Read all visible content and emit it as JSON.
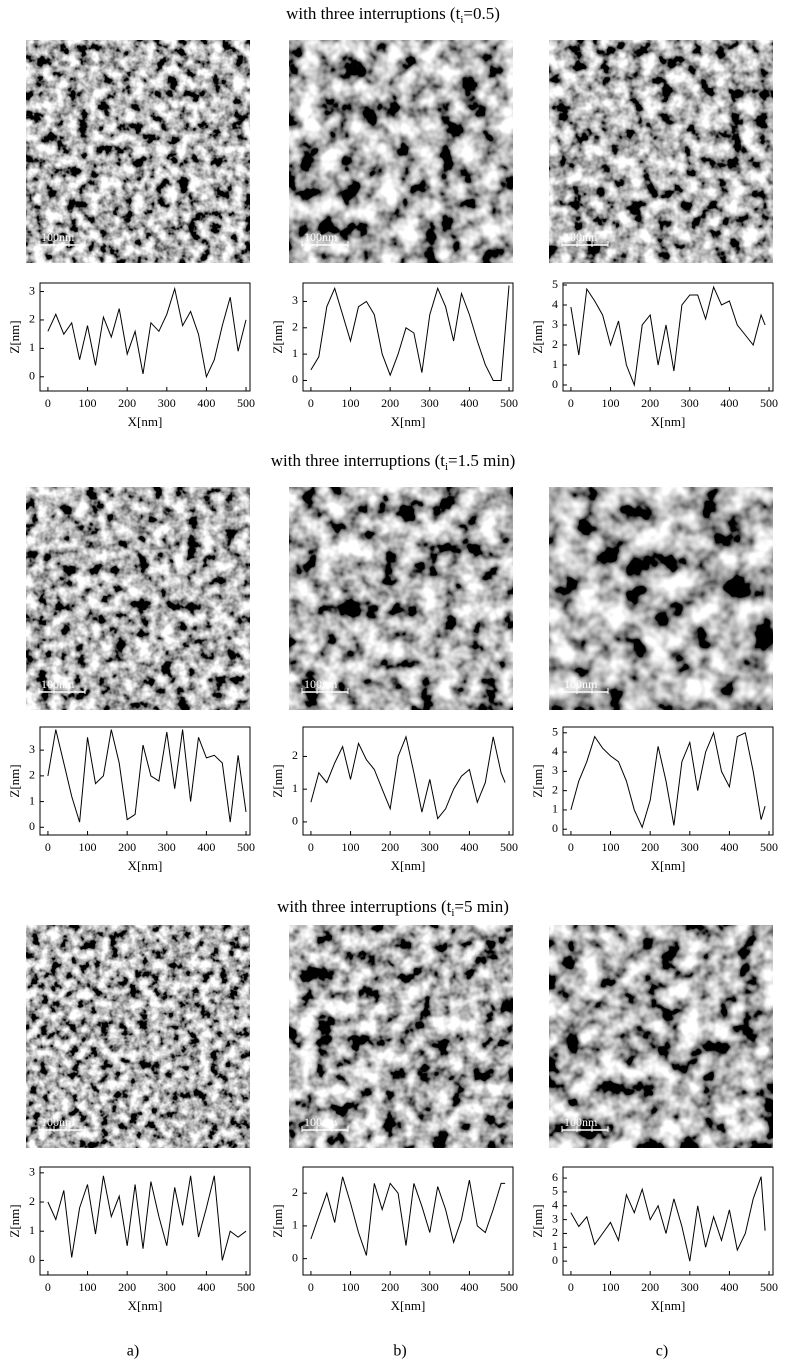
{
  "rows": [
    {
      "title": {
        "prefix": "with three interruptions (t",
        "sub": "i",
        "suffix": "=0.5)"
      }
    },
    {
      "title": {
        "prefix": "with three interruptions (t",
        "sub": "i",
        "suffix": "=1.5 min)"
      }
    },
    {
      "title": {
        "prefix": "with three interruptions (t",
        "sub": "i",
        "suffix": "=5 min)"
      }
    }
  ],
  "scale_bars": [
    "100nm",
    "100nm",
    "100nm",
    "100nm",
    "100nm",
    "100nm",
    "100nm",
    "100nm",
    "100nm"
  ],
  "panel_labels": [
    "a)",
    "b)",
    "c)"
  ],
  "chart_data": [
    {
      "type": "line",
      "xlabel": "X[nm]",
      "ylabel": "Z[nm]",
      "color": "#000000",
      "xlim": [
        -20,
        510
      ],
      "ylim": [
        -0.5,
        3.3
      ],
      "xticks": [
        0,
        100,
        200,
        300,
        400,
        500
      ],
      "yticks": [
        0,
        1,
        2,
        3
      ],
      "x": [
        0,
        20,
        40,
        60,
        80,
        100,
        120,
        140,
        160,
        180,
        200,
        220,
        240,
        260,
        280,
        300,
        320,
        340,
        360,
        380,
        400,
        420,
        440,
        460,
        480,
        500
      ],
      "values": [
        1.6,
        2.2,
        1.5,
        1.9,
        0.6,
        1.8,
        0.4,
        2.1,
        1.4,
        2.4,
        0.8,
        1.6,
        0.1,
        1.9,
        1.6,
        2.2,
        3.1,
        1.8,
        2.3,
        1.5,
        0.0,
        0.6,
        1.8,
        2.8,
        0.9,
        2.0
      ]
    },
    {
      "type": "line",
      "xlabel": "X[nm]",
      "ylabel": "Z[nm]",
      "color": "#000000",
      "xlim": [
        -20,
        510
      ],
      "ylim": [
        -0.4,
        3.7
      ],
      "xticks": [
        0,
        100,
        200,
        300,
        400,
        500
      ],
      "yticks": [
        0,
        1,
        2,
        3
      ],
      "x": [
        0,
        20,
        40,
        60,
        80,
        100,
        120,
        140,
        160,
        180,
        200,
        220,
        240,
        260,
        280,
        300,
        320,
        340,
        360,
        380,
        400,
        420,
        440,
        460,
        480,
        500
      ],
      "values": [
        0.4,
        0.9,
        2.8,
        3.5,
        2.5,
        1.5,
        2.8,
        3.0,
        2.5,
        1.0,
        0.2,
        1.0,
        2.0,
        1.8,
        0.3,
        2.5,
        3.5,
        2.8,
        1.5,
        3.3,
        2.5,
        1.5,
        0.6,
        0.0,
        0.0,
        3.6
      ]
    },
    {
      "type": "line",
      "xlabel": "X[nm]",
      "ylabel": "Z[nm]",
      "color": "#000000",
      "xlim": [
        -20,
        510
      ],
      "ylim": [
        -0.3,
        5.1
      ],
      "xticks": [
        0,
        100,
        200,
        300,
        400,
        500
      ],
      "yticks": [
        0,
        1,
        2,
        3,
        4,
        5
      ],
      "x": [
        0,
        20,
        40,
        60,
        80,
        100,
        120,
        140,
        160,
        180,
        200,
        220,
        240,
        260,
        280,
        300,
        320,
        340,
        360,
        380,
        400,
        420,
        440,
        460,
        480,
        490
      ],
      "values": [
        3.9,
        1.5,
        4.8,
        4.2,
        3.5,
        2.0,
        3.2,
        1.0,
        0.0,
        3.0,
        3.5,
        1.0,
        3.0,
        0.7,
        4.0,
        4.5,
        4.5,
        3.3,
        4.9,
        4.0,
        4.2,
        3.0,
        2.5,
        2.0,
        3.5,
        3.0
      ]
    },
    {
      "type": "line",
      "xlabel": "X[nm]",
      "ylabel": "Z[nm]",
      "color": "#000000",
      "xlim": [
        -20,
        510
      ],
      "ylim": [
        -0.3,
        3.9
      ],
      "xticks": [
        0,
        100,
        200,
        300,
        400,
        500
      ],
      "yticks": [
        0,
        1,
        2,
        3
      ],
      "x": [
        0,
        20,
        40,
        60,
        80,
        100,
        120,
        140,
        160,
        180,
        200,
        220,
        240,
        260,
        280,
        300,
        320,
        340,
        360,
        380,
        400,
        420,
        440,
        460,
        480,
        500
      ],
      "values": [
        2.0,
        3.8,
        2.5,
        1.2,
        0.2,
        3.5,
        1.7,
        2.0,
        3.8,
        2.5,
        0.3,
        0.5,
        3.2,
        2.0,
        1.8,
        3.7,
        1.5,
        3.8,
        1.0,
        3.5,
        2.7,
        2.8,
        2.5,
        0.2,
        2.8,
        0.6
      ]
    },
    {
      "type": "line",
      "xlabel": "X[nm]",
      "ylabel": "Z[nm]",
      "color": "#000000",
      "xlim": [
        -20,
        510
      ],
      "ylim": [
        -0.4,
        2.9
      ],
      "xticks": [
        0,
        100,
        200,
        300,
        400,
        500
      ],
      "yticks": [
        0,
        1,
        2
      ],
      "x": [
        0,
        20,
        40,
        60,
        80,
        100,
        120,
        140,
        160,
        180,
        200,
        220,
        240,
        260,
        280,
        300,
        320,
        340,
        360,
        380,
        400,
        420,
        440,
        460,
        480,
        490
      ],
      "values": [
        0.6,
        1.5,
        1.2,
        1.8,
        2.3,
        1.3,
        2.4,
        1.9,
        1.6,
        1.0,
        0.4,
        2.0,
        2.6,
        1.5,
        0.3,
        1.3,
        0.1,
        0.4,
        1.0,
        1.4,
        1.6,
        0.6,
        1.2,
        2.6,
        1.5,
        1.2
      ]
    },
    {
      "type": "line",
      "xlabel": "X[nm]",
      "ylabel": "Z[nm]",
      "color": "#000000",
      "xlim": [
        -20,
        510
      ],
      "ylim": [
        -0.3,
        5.3
      ],
      "xticks": [
        0,
        100,
        200,
        300,
        400,
        500
      ],
      "yticks": [
        0,
        1,
        2,
        3,
        4,
        5
      ],
      "x": [
        0,
        20,
        40,
        60,
        80,
        100,
        120,
        140,
        160,
        180,
        200,
        220,
        240,
        260,
        280,
        300,
        320,
        340,
        360,
        380,
        400,
        420,
        440,
        460,
        480,
        490
      ],
      "values": [
        1.0,
        2.5,
        3.5,
        4.8,
        4.2,
        3.8,
        3.5,
        2.5,
        1.0,
        0.1,
        1.5,
        4.3,
        2.5,
        0.2,
        3.5,
        4.5,
        2.0,
        4.0,
        5.0,
        3.0,
        2.2,
        4.8,
        5.0,
        3.0,
        0.5,
        1.2
      ]
    },
    {
      "type": "line",
      "xlabel": "X[nm]",
      "ylabel": "Z[nm]",
      "color": "#000000",
      "xlim": [
        -20,
        510
      ],
      "ylim": [
        -0.5,
        3.2
      ],
      "xticks": [
        0,
        100,
        200,
        300,
        400,
        500
      ],
      "yticks": [
        0,
        1,
        2,
        3
      ],
      "x": [
        0,
        20,
        40,
        60,
        80,
        100,
        120,
        140,
        160,
        180,
        200,
        220,
        240,
        260,
        280,
        300,
        320,
        340,
        360,
        380,
        400,
        420,
        440,
        460,
        480,
        500
      ],
      "values": [
        2.0,
        1.4,
        2.4,
        0.1,
        1.8,
        2.6,
        0.9,
        2.9,
        1.5,
        2.2,
        0.5,
        2.6,
        0.4,
        2.7,
        1.5,
        0.5,
        2.5,
        1.2,
        2.9,
        0.8,
        1.8,
        2.9,
        0.0,
        1.0,
        0.8,
        1.0
      ]
    },
    {
      "type": "line",
      "xlabel": "X[nm]",
      "ylabel": "Z[nm]",
      "color": "#000000",
      "xlim": [
        -20,
        510
      ],
      "ylim": [
        -0.5,
        2.8
      ],
      "xticks": [
        0,
        100,
        200,
        300,
        400,
        500
      ],
      "yticks": [
        0,
        1,
        2
      ],
      "x": [
        0,
        20,
        40,
        60,
        80,
        100,
        120,
        140,
        160,
        180,
        200,
        220,
        240,
        260,
        280,
        300,
        320,
        340,
        360,
        380,
        400,
        420,
        440,
        460,
        480,
        490
      ],
      "values": [
        0.6,
        1.3,
        2.0,
        1.1,
        2.5,
        1.7,
        0.8,
        0.1,
        2.3,
        1.5,
        2.3,
        2.0,
        0.4,
        2.3,
        1.6,
        0.8,
        2.2,
        1.5,
        0.5,
        1.2,
        2.4,
        1.0,
        0.8,
        1.5,
        2.3,
        2.3
      ]
    },
    {
      "type": "line",
      "xlabel": "X[nm]",
      "ylabel": "Z[nm]",
      "color": "#000000",
      "xlim": [
        -20,
        510
      ],
      "ylim": [
        -1,
        6.8
      ],
      "xticks": [
        0,
        100,
        200,
        300,
        400,
        500
      ],
      "yticks": [
        0,
        1,
        2,
        3,
        4,
        5,
        6
      ],
      "x": [
        0,
        20,
        40,
        60,
        80,
        100,
        120,
        140,
        160,
        180,
        200,
        220,
        240,
        260,
        280,
        300,
        320,
        340,
        360,
        380,
        400,
        420,
        440,
        460,
        480,
        490
      ],
      "values": [
        3.5,
        2.5,
        3.2,
        1.2,
        2.0,
        2.8,
        1.5,
        4.8,
        3.5,
        5.2,
        3.0,
        4.0,
        2.0,
        4.5,
        2.5,
        0.0,
        4.0,
        1.0,
        3.2,
        1.5,
        3.7,
        0.8,
        2.0,
        4.5,
        6.1,
        2.2
      ]
    }
  ]
}
